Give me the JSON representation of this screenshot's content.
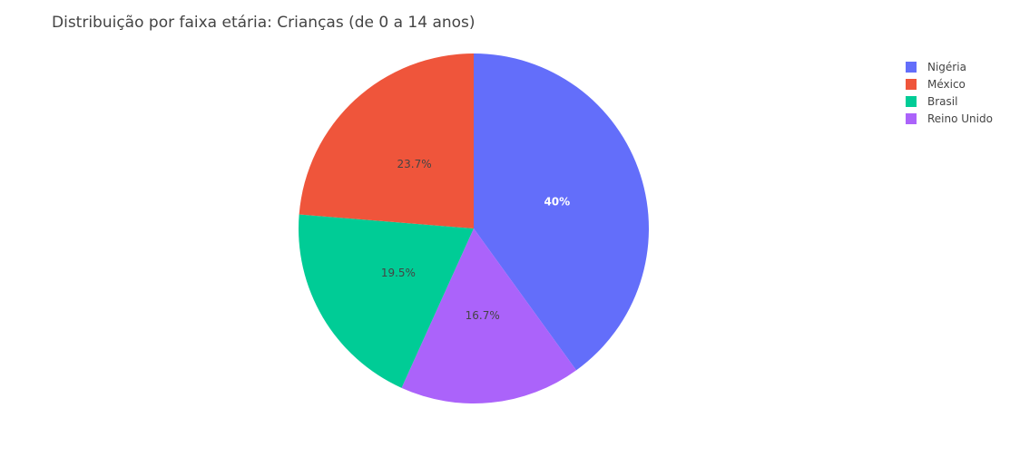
{
  "chart_data": {
    "type": "pie",
    "title": "Distribuição por faixa etária: Crianças (de 0 a 14 anos)",
    "categories": [
      "Nigéria",
      "México",
      "Brasil",
      "Reino Unido"
    ],
    "values": [
      40,
      23.7,
      19.5,
      16.7
    ],
    "labels": [
      "40%",
      "23.7%",
      "19.5%",
      "16.7%"
    ],
    "colors": [
      "#636efa",
      "#EF553B",
      "#00cc96",
      "#ab63fa"
    ],
    "slice_order": [
      "Nigéria",
      "Reino Unido",
      "Brasil",
      "México"
    ],
    "label_colors": [
      "#ffffff",
      "#444444",
      "#444444",
      "#444444"
    ],
    "legend": {
      "placement": "top-right",
      "entries": [
        "Nigéria",
        "México",
        "Brasil",
        "Reino Unido"
      ]
    }
  }
}
